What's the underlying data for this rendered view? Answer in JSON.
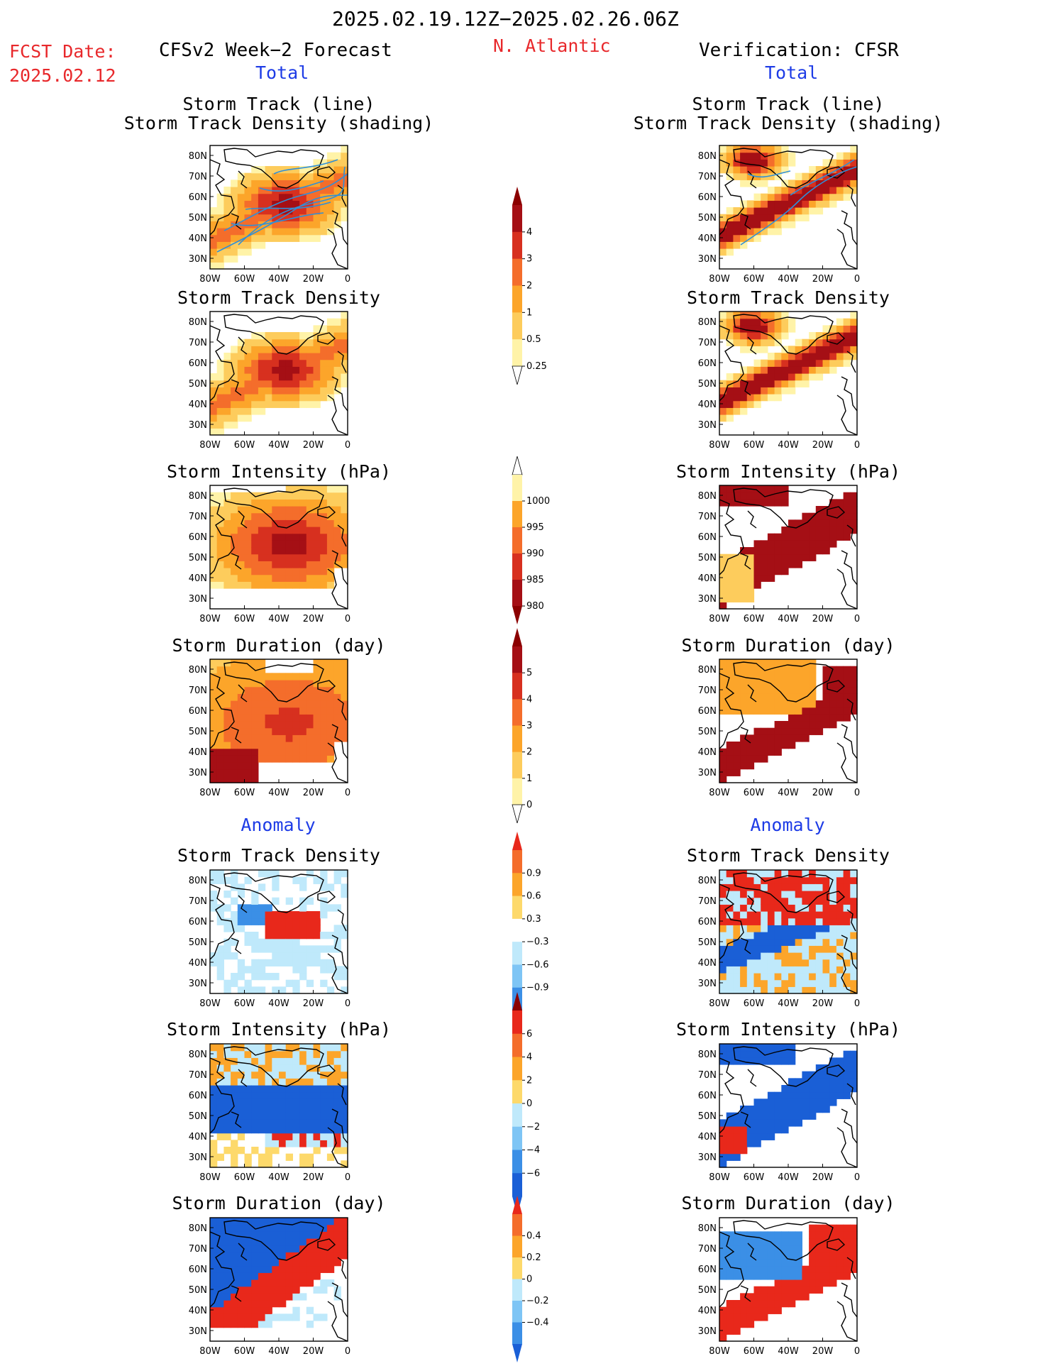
{
  "header": {
    "date_range": "2025.02.19.12Z−2025.02.26.06Z",
    "fcst_label": "FCST Date:",
    "fcst_date": "2025.02.12",
    "left_title": "CFSv2 Week−2 Forecast",
    "region": "N. Atlantic",
    "right_title": "Verification: CFSR",
    "left_sub": "Total",
    "right_sub": "Total"
  },
  "sections": {
    "anomaly_left": "Anomaly",
    "anomaly_right": "Anomaly"
  },
  "map_axes": {
    "lat_ticks": [
      "80N",
      "70N",
      "60N",
      "50N",
      "40N",
      "30N"
    ],
    "lon_ticks": [
      "80W",
      "60W",
      "40W",
      "20W",
      "0"
    ]
  },
  "chart_data": [
    {
      "type": "heatmap",
      "id": "left-1",
      "title_lines": [
        "Storm Track (line)",
        "Storm Track Density (shading)"
      ],
      "colorbar": "cb1",
      "overlay_tracks": true
    },
    {
      "type": "heatmap",
      "id": "right-1",
      "title_lines": [
        "Storm Track (line)",
        "Storm Track Density (shading)"
      ],
      "colorbar": "cb1",
      "overlay_tracks": true
    },
    {
      "type": "heatmap",
      "id": "left-2",
      "title_lines": [
        "Storm Track Density"
      ],
      "colorbar": "cb1"
    },
    {
      "type": "heatmap",
      "id": "right-2",
      "title_lines": [
        "Storm Track Density"
      ],
      "colorbar": "cb1"
    },
    {
      "type": "heatmap",
      "id": "left-3",
      "title_lines": [
        "Storm Intensity (hPa)"
      ],
      "colorbar": "cb2"
    },
    {
      "type": "heatmap",
      "id": "right-3",
      "title_lines": [
        "Storm Intensity (hPa)"
      ],
      "colorbar": "cb2"
    },
    {
      "type": "heatmap",
      "id": "left-4",
      "title_lines": [
        "Storm Duration (day)"
      ],
      "colorbar": "cb3"
    },
    {
      "type": "heatmap",
      "id": "right-4",
      "title_lines": [
        "Storm Duration (day)"
      ],
      "colorbar": "cb3"
    },
    {
      "type": "heatmap",
      "id": "left-5",
      "title_lines": [
        "Storm Track Density"
      ],
      "colorbar": "cb4"
    },
    {
      "type": "heatmap",
      "id": "right-5",
      "title_lines": [
        "Storm Track Density"
      ],
      "colorbar": "cb4"
    },
    {
      "type": "heatmap",
      "id": "left-6",
      "title_lines": [
        "Storm Intensity (hPa)"
      ],
      "colorbar": "cb5"
    },
    {
      "type": "heatmap",
      "id": "right-6",
      "title_lines": [
        "Storm Intensity (hPa)"
      ],
      "colorbar": "cb5"
    },
    {
      "type": "heatmap",
      "id": "left-7",
      "title_lines": [
        "Storm Duration (day)"
      ],
      "colorbar": "cb6"
    },
    {
      "type": "heatmap",
      "id": "right-7",
      "title_lines": [
        "Storm Duration (day)"
      ],
      "colorbar": "cb6"
    }
  ],
  "colorbars": {
    "cb1": {
      "labels": [
        "4",
        "3",
        "2",
        "1",
        "0.5",
        "0.25"
      ],
      "colors": [
        "#a50f15",
        "#d7301f",
        "#f46d2b",
        "#fca52a",
        "#fdcc5c",
        "#fff3a8"
      ],
      "arrow_top": "#8b0000",
      "arrow_bottom": "#ffffff"
    },
    "cb2": {
      "labels": [
        "1000",
        "995",
        "990",
        "985",
        "980"
      ],
      "colors": [
        "#fff3a8",
        "#fca52a",
        "#f46d2b",
        "#d7301f",
        "#a50f15"
      ],
      "arrow_top": "#ffffff",
      "arrow_bottom": "#8b0000"
    },
    "cb3": {
      "labels": [
        "5",
        "4",
        "3",
        "2",
        "1",
        "0"
      ],
      "colors": [
        "#a50f15",
        "#d7301f",
        "#f46d2b",
        "#fca52a",
        "#fdcc5c",
        "#fff3a8"
      ],
      "arrow_top": "#8b0000",
      "arrow_bottom": "#ffffff"
    },
    "cb4": {
      "labels": [
        "0.9",
        "0.6",
        "0.3",
        "−0.3",
        "−0.6",
        "−0.9"
      ],
      "colors": [
        "#f46d2b",
        "#fca52a",
        "#fdd96b",
        "#ffffff",
        "#bfe9fb",
        "#7ec5f5",
        "#3b8fe6"
      ],
      "arrow_top": "#e8281b",
      "arrow_bottom": "#1a5fd6"
    },
    "cb5": {
      "labels": [
        "6",
        "4",
        "2",
        "0",
        "−2",
        "−4",
        "−6"
      ],
      "colors": [
        "#e8281b",
        "#f46d2b",
        "#fca52a",
        "#fdd96b",
        "#bfe9fb",
        "#7ec5f5",
        "#3b8fe6",
        "#1a5fd6"
      ],
      "arrow_top": "#8b0000",
      "arrow_bottom": "#1a5fd6"
    },
    "cb6": {
      "labels": [
        "0.4",
        "0.2",
        "0",
        "−0.2",
        "−0.4"
      ],
      "colors": [
        "#f46d2b",
        "#fca52a",
        "#fdd96b",
        "#bfe9fb",
        "#7ec5f5",
        "#3b8fe6"
      ],
      "arrow_top": "#e8281b",
      "arrow_bottom": "#1a5fd6"
    }
  }
}
